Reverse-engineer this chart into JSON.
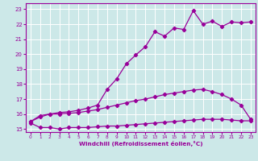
{
  "xlabel": "Windchill (Refroidissement éolien,°C)",
  "bg_color": "#cce8e8",
  "grid_color": "#ffffff",
  "line_color": "#990099",
  "xlim": [
    -0.5,
    23.5
  ],
  "ylim": [
    14.8,
    23.4
  ],
  "yticks": [
    15,
    16,
    17,
    18,
    19,
    20,
    21,
    22,
    23
  ],
  "xticks": [
    0,
    1,
    2,
    3,
    4,
    5,
    6,
    7,
    8,
    9,
    10,
    11,
    12,
    13,
    14,
    15,
    16,
    17,
    18,
    19,
    20,
    21,
    22,
    23
  ],
  "line1_x": [
    0,
    1,
    2,
    3,
    4,
    5,
    6,
    7,
    8,
    9,
    10,
    11,
    12,
    13,
    14,
    15,
    16,
    17,
    18,
    19,
    20,
    21,
    22,
    23
  ],
  "line1_y": [
    15.4,
    15.1,
    15.1,
    15.0,
    15.1,
    15.1,
    15.1,
    15.15,
    15.2,
    15.2,
    15.25,
    15.3,
    15.35,
    15.4,
    15.45,
    15.5,
    15.55,
    15.6,
    15.65,
    15.65,
    15.65,
    15.6,
    15.55,
    15.55
  ],
  "line2_x": [
    0,
    1,
    2,
    3,
    4,
    5,
    6,
    7,
    8,
    9,
    10,
    11,
    12,
    13,
    14,
    15,
    16,
    17,
    18,
    19,
    20,
    21,
    22,
    23
  ],
  "line2_y": [
    15.5,
    15.8,
    16.0,
    16.0,
    16.05,
    16.1,
    16.2,
    16.3,
    16.45,
    16.6,
    16.75,
    16.9,
    17.0,
    17.15,
    17.3,
    17.4,
    17.5,
    17.6,
    17.65,
    17.5,
    17.3,
    17.0,
    16.6,
    15.65
  ],
  "line3_x": [
    0,
    1,
    2,
    3,
    4,
    5,
    6,
    7,
    8,
    9,
    10,
    11,
    12,
    13,
    14,
    15,
    16,
    17,
    18,
    19,
    20,
    21,
    22,
    23
  ],
  "line3_y": [
    15.5,
    15.9,
    16.0,
    16.1,
    16.15,
    16.25,
    16.4,
    16.6,
    17.65,
    18.35,
    19.35,
    19.95,
    20.5,
    21.5,
    21.2,
    21.75,
    21.65,
    22.9,
    22.0,
    22.2,
    21.85,
    22.15,
    22.1,
    22.15
  ]
}
